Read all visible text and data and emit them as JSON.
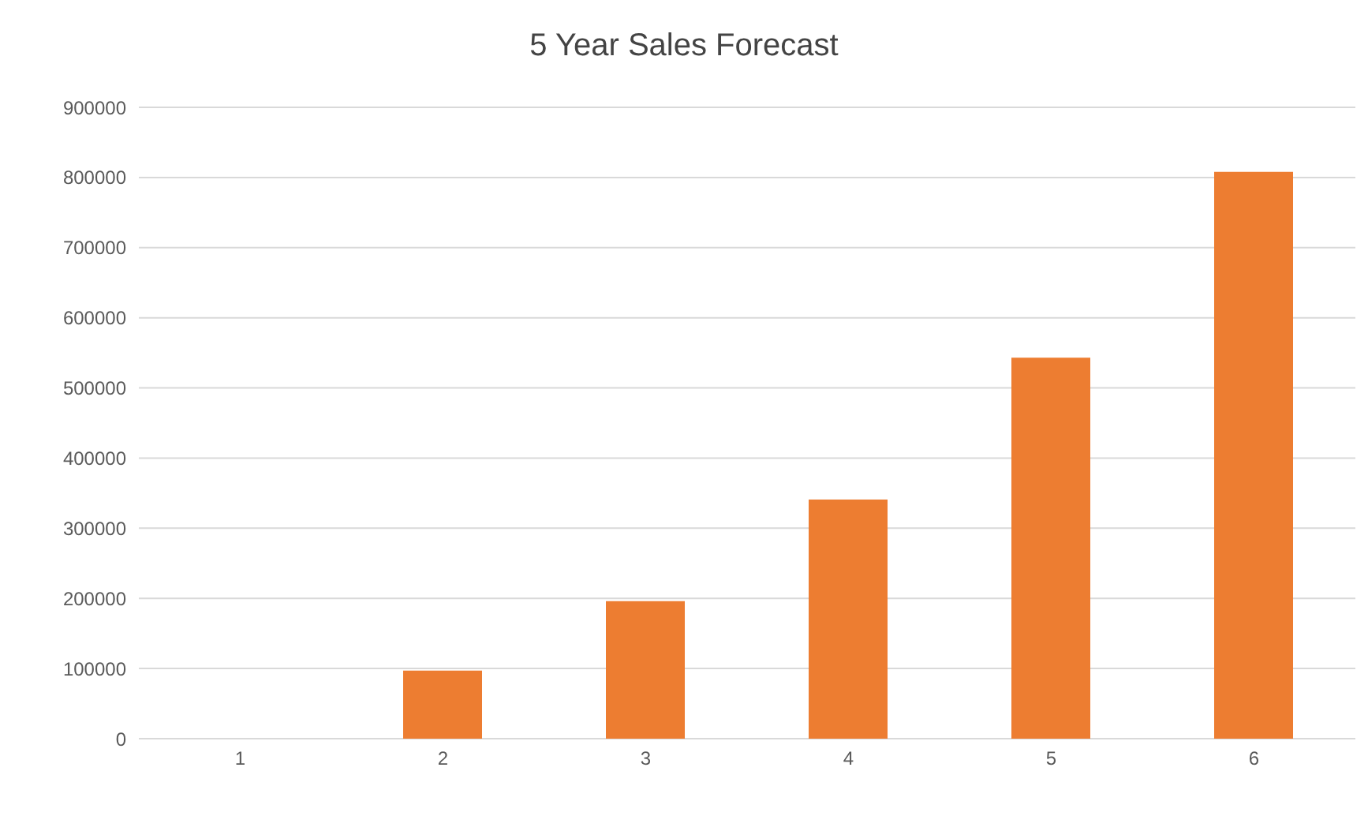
{
  "chart_data": {
    "type": "bar",
    "title": "5 Year Sales Forecast",
    "categories": [
      "1",
      "2",
      "3",
      "4",
      "5",
      "6"
    ],
    "values": [
      0,
      97000,
      196000,
      341000,
      543000,
      808000
    ],
    "color": "#ed7d31",
    "ylim": [
      0,
      900000
    ],
    "yticks": [
      0,
      100000,
      200000,
      300000,
      400000,
      500000,
      600000,
      700000,
      800000,
      900000
    ],
    "grid": "y"
  }
}
